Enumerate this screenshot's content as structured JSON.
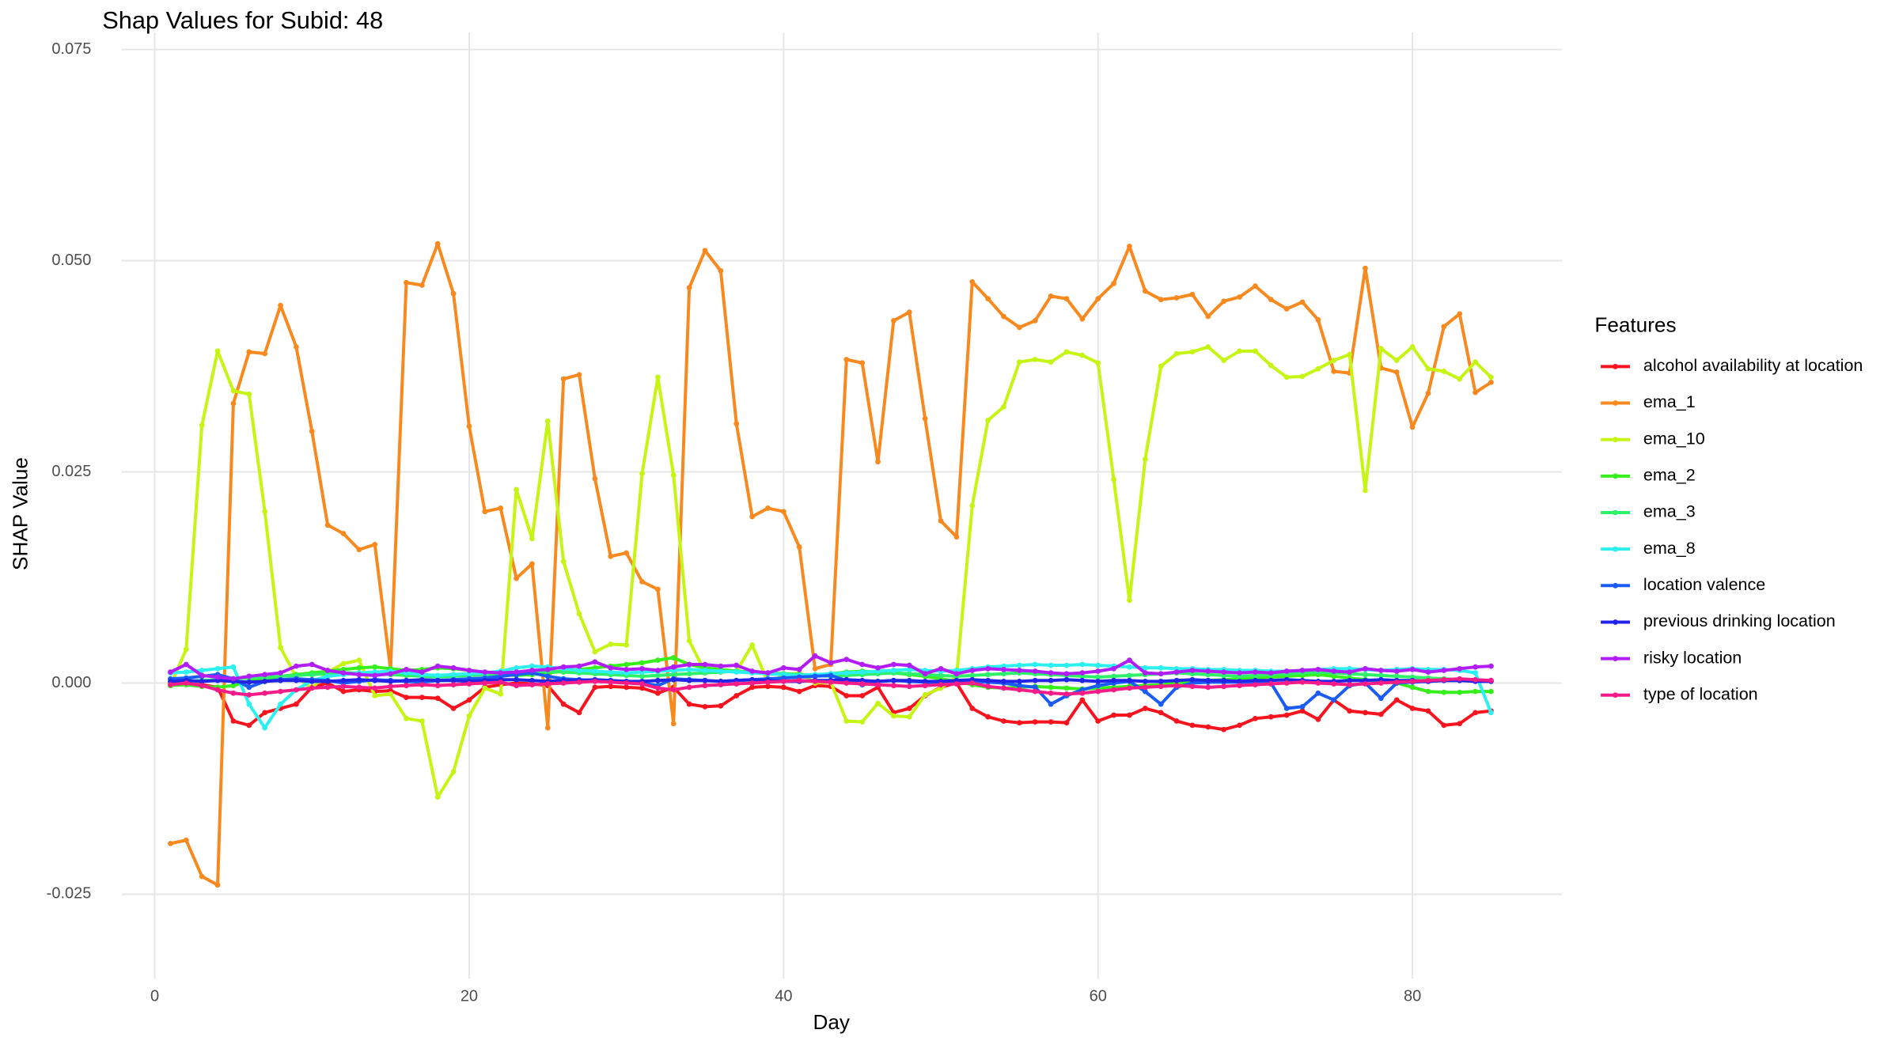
{
  "chart_data": {
    "type": "line",
    "title": "Shap Values for Subid: 48",
    "x_label": "Day",
    "y_label": "SHAP Value",
    "legend_title": "Features",
    "legend": "right",
    "grid": true,
    "xlim": [
      -2.1,
      89.5
    ],
    "ylim": [
      -0.035,
      0.077
    ],
    "xticks": [
      0,
      20,
      40,
      60,
      80
    ],
    "yticks": [
      {
        "value": -0.025,
        "label": "-0.025"
      },
      {
        "value": 0,
        "label": "0.000"
      },
      {
        "value": 0.025,
        "label": "0.025"
      },
      {
        "value": 0.05,
        "label": "0.050"
      },
      {
        "value": 0.075,
        "label": "0.075"
      }
    ],
    "x": [
      1,
      2,
      3,
      4,
      5,
      6,
      7,
      8,
      9,
      10,
      11,
      12,
      13,
      14,
      15,
      16,
      17,
      18,
      19,
      20,
      21,
      22,
      23,
      24,
      25,
      26,
      27,
      28,
      29,
      30,
      31,
      32,
      33,
      34,
      35,
      36,
      37,
      38,
      39,
      40,
      41,
      42,
      43,
      44,
      45,
      46,
      47,
      48,
      49,
      50,
      51,
      52,
      53,
      54,
      55,
      56,
      57,
      58,
      59,
      60,
      61,
      62,
      63,
      64,
      65,
      66,
      67,
      68,
      69,
      70,
      71,
      72,
      73,
      74,
      75,
      76,
      77,
      78,
      79,
      80,
      81,
      82,
      83,
      84,
      85
    ],
    "series": [
      {
        "name": "alcohol availability at location",
        "color": "#f8141e",
        "values": [
          -0.0002,
          -0.0001,
          -0.0002,
          -0.0005,
          -0.0045,
          -0.005,
          -0.0035,
          -0.003,
          -0.0025,
          -0.0005,
          0,
          -0.001,
          -0.0008,
          -0.001,
          -0.0009,
          -0.0017,
          -0.0017,
          -0.0018,
          -0.003,
          -0.002,
          -0.0005,
          -0.0002,
          0,
          -0.0001,
          -0.0003,
          -0.0025,
          -0.0035,
          -0.0005,
          -0.0004,
          -0.0005,
          -0.0006,
          -0.0012,
          -0.0005,
          -0.0025,
          -0.0028,
          -0.0027,
          -0.0015,
          -0.0005,
          -0.0004,
          -0.0005,
          -0.001,
          -0.0003,
          -0.0004,
          -0.0015,
          -0.0015,
          -0.0005,
          -0.0035,
          -0.003,
          -0.0015,
          -0.0005,
          0,
          -0.003,
          -0.004,
          -0.0045,
          -0.0047,
          -0.0046,
          -0.0046,
          -0.0047,
          -0.002,
          -0.0045,
          -0.0038,
          -0.0038,
          -0.003,
          -0.0035,
          -0.0045,
          -0.005,
          -0.0052,
          -0.0055,
          -0.005,
          -0.0042,
          -0.004,
          -0.0038,
          -0.0033,
          -0.0043,
          -0.002,
          -0.0033,
          -0.0035,
          -0.0037,
          -0.002,
          -0.003,
          -0.0033,
          -0.005,
          -0.0048,
          -0.0035,
          -0.0033
        ]
      },
      {
        "name": "ema_1",
        "color": "#f7891f",
        "values": [
          -0.019,
          -0.0186,
          -0.0229,
          -0.0239,
          0.0331,
          0.0392,
          0.039,
          0.0447,
          0.0398,
          0.0298,
          0.0187,
          0.0177,
          0.0158,
          0.0164,
          0.0016,
          0.0474,
          0.0471,
          0.052,
          0.0461,
          0.0304,
          0.0203,
          0.0207,
          0.0124,
          0.0141,
          -0.0053,
          0.036,
          0.0365,
          0.0242,
          0.015,
          0.0154,
          0.012,
          0.0111,
          -0.0048,
          0.0468,
          0.0512,
          0.0488,
          0.0307,
          0.0197,
          0.0207,
          0.0203,
          0.0161,
          0.0017,
          0.0022,
          0.0383,
          0.0379,
          0.0262,
          0.0429,
          0.0439,
          0.0313,
          0.0192,
          0.0173,
          0.0475,
          0.0455,
          0.0434,
          0.0421,
          0.0429,
          0.0458,
          0.0455,
          0.0431,
          0.0455,
          0.0473,
          0.0517,
          0.0464,
          0.0454,
          0.0456,
          0.046,
          0.0434,
          0.0452,
          0.0457,
          0.047,
          0.0454,
          0.0443,
          0.0451,
          0.043,
          0.0369,
          0.0367,
          0.0491,
          0.0373,
          0.0368,
          0.0303,
          0.0343,
          0.0422,
          0.0437,
          0.0344,
          0.0356
        ]
      },
      {
        "name": "ema_10",
        "color": "#c6f514",
        "values": [
          -0.0003,
          0.004,
          0.0305,
          0.0393,
          0.0346,
          0.0342,
          0.0203,
          0.0042,
          0.0007,
          -0.0006,
          0.0013,
          0.0023,
          0.0027,
          -0.0015,
          -0.0013,
          -0.0042,
          -0.0045,
          -0.0135,
          -0.0105,
          -0.0039,
          -0.0006,
          -0.0013,
          0.0229,
          0.0171,
          0.031,
          0.0144,
          0.0082,
          0.0037,
          0.0046,
          0.0045,
          0.0248,
          0.0362,
          0.0246,
          0.005,
          0.0013,
          0.0016,
          0.0014,
          0.0045,
          0.0001,
          0.0009,
          0.0012,
          0,
          0.0001,
          -0.0045,
          -0.0046,
          -0.0024,
          -0.0039,
          -0.004,
          -0.0014,
          -0.0006,
          0.0007,
          0.021,
          0.0311,
          0.0327,
          0.038,
          0.0383,
          0.038,
          0.0392,
          0.0388,
          0.0379,
          0.0241,
          0.0098,
          0.0265,
          0.0375,
          0.039,
          0.0392,
          0.0398,
          0.0382,
          0.0393,
          0.0393,
          0.0376,
          0.0362,
          0.0363,
          0.0372,
          0.0382,
          0.0389,
          0.0228,
          0.0396,
          0.0382,
          0.0398,
          0.0372,
          0.0369,
          0.036,
          0.038,
          0.0362
        ]
      },
      {
        "name": "ema_2",
        "color": "#37ef1c",
        "values": [
          -0.0003,
          -0.0002,
          -0.0004,
          -0.0005,
          -0.0003,
          0.0002,
          0.0005,
          0.0008,
          0.001,
          0.0012,
          0.0014,
          0.0016,
          0.0018,
          0.0019,
          0.0017,
          0.0015,
          0.0016,
          0.0018,
          0.0017,
          0.0015,
          0.0012,
          0.001,
          0.0009,
          0.001,
          0.0012,
          0.0014,
          0.0016,
          0.0018,
          0.002,
          0.0022,
          0.0024,
          0.0027,
          0.003,
          0.0022,
          0.0018,
          0.0016,
          0.0014,
          0.0013,
          0.0012,
          0.0011,
          0.001,
          0.0009,
          0.0011,
          0.0013,
          0.0014,
          0.0013,
          0.0012,
          0.001,
          0.0008,
          0.0005,
          0.0002,
          -0.0002,
          -0.0005,
          -0.0006,
          -0.0005,
          -0.0004,
          -0.0005,
          -0.0006,
          -0.0007,
          -0.0006,
          -0.0005,
          -0.0004,
          -0.0003,
          -0.0002,
          0,
          0.0002,
          0.0003,
          0.0004,
          0.0005,
          0.0006,
          0.0007,
          0.0008,
          0.0009,
          0.001,
          0.0008,
          0.0006,
          0.0004,
          0.0002,
          0,
          -0.0005,
          -0.001,
          -0.0011,
          -0.0011,
          -0.001,
          -0.001
        ]
      },
      {
        "name": "ema_3",
        "color": "#2ef06a",
        "values": [
          0,
          0.0002,
          0.0003,
          0.0004,
          0.0005,
          0.0006,
          0.0007,
          0.0008,
          0.0009,
          0.001,
          0.0011,
          0.0012,
          0.0012,
          0.0011,
          0.001,
          0.0009,
          0.0008,
          0.0007,
          0.0008,
          0.0009,
          0.001,
          0.0011,
          0.0012,
          0.0013,
          0.0014,
          0.0013,
          0.0012,
          0.0011,
          0.001,
          0.0009,
          0.0008,
          0.0009,
          0.001,
          0.0011,
          0.0012,
          0.0013,
          0.0014,
          0.0013,
          0.0012,
          0.0011,
          0.001,
          0.0009,
          0.0008,
          0.0009,
          0.001,
          0.0011,
          0.0012,
          0.0011,
          0.001,
          0.0009,
          0.0008,
          0.0009,
          0.001,
          0.0011,
          0.0012,
          0.0011,
          0.001,
          0.0009,
          0.0008,
          0.0007,
          0.0008,
          0.0009,
          0.001,
          0.0011,
          0.0012,
          0.0011,
          0.001,
          0.0009,
          0.0008,
          0.0009,
          0.001,
          0.0011,
          0.0012,
          0.0013,
          0.0012,
          0.0011,
          0.001,
          0.0009,
          0.0008,
          0.0007,
          0.0006,
          0.0005,
          0.0004,
          0.0003,
          0.0002
        ]
      },
      {
        "name": "ema_8",
        "color": "#2cf0f0",
        "values": [
          0.0012,
          0.0013,
          0.0015,
          0.0017,
          0.0019,
          -0.0025,
          -0.0053,
          -0.0025,
          -0.0008,
          0.0003,
          0.0008,
          0.001,
          0.0012,
          0.0013,
          0.0014,
          0.0012,
          0.001,
          0.0009,
          0.001,
          0.0011,
          0.0012,
          0.0014,
          0.0018,
          0.002,
          0.0019,
          0.0017,
          0.0015,
          0.0014,
          0.0013,
          0.0012,
          0.0013,
          0.0014,
          0.0015,
          0.0016,
          0.0015,
          0.0014,
          0.0013,
          0.0012,
          0.0011,
          0.001,
          0.0009,
          0.001,
          0.0011,
          0.0012,
          0.0013,
          0.0014,
          0.0015,
          0.0016,
          0.0015,
          0.0014,
          0.0015,
          0.0017,
          0.0019,
          0.002,
          0.0021,
          0.0022,
          0.0021,
          0.0021,
          0.0022,
          0.0021,
          0.002,
          0.0019,
          0.0018,
          0.0018,
          0.0017,
          0.0017,
          0.0016,
          0.0016,
          0.0015,
          0.0015,
          0.0014,
          0.0014,
          0.0015,
          0.0016,
          0.0017,
          0.0017,
          0.0016,
          0.0015,
          0.0016,
          0.0017,
          0.0016,
          0.0016,
          0.0015,
          0.0012,
          -0.0035
        ]
      },
      {
        "name": "location valence",
        "color": "#1a5cf5",
        "values": [
          0.0005,
          0.0006,
          0.0008,
          0.001,
          0.0005,
          -0.0005,
          0.0002,
          0.0004,
          0.0005,
          0.0004,
          0.0003,
          0,
          0.0002,
          0.0004,
          0.0003,
          0.0002,
          0.0001,
          0.0003,
          0.0004,
          0.0005,
          0.0006,
          0.0008,
          0.001,
          0.0012,
          0.0008,
          0.0005,
          0.0004,
          0.0003,
          0.0002,
          0.0001,
          0,
          -0.0003,
          0.0005,
          0.0004,
          0.0003,
          0.0002,
          0.0003,
          0.0004,
          0.0005,
          0.0006,
          0.0007,
          0.0008,
          0.0009,
          0.0003,
          -0.0002,
          0.0002,
          0.0003,
          0.0002,
          0.0001,
          0,
          0.0001,
          0.0002,
          0.0001,
          0,
          -0.0003,
          -0.0005,
          -0.0025,
          -0.0015,
          -0.0008,
          -0.0003,
          0,
          0.0002,
          -0.001,
          -0.0025,
          -0.0005,
          0,
          0.0001,
          0.0001,
          0.0001,
          0.0001,
          0,
          -0.003,
          -0.0028,
          -0.0012,
          -0.002,
          -0.0003,
          0,
          -0.0018,
          0,
          0.0001,
          0.0002,
          0.0003,
          0.0003,
          0.0003,
          0.0003
        ]
      },
      {
        "name": "previous drinking location",
        "color": "#2424e8",
        "values": [
          0.0002,
          0.0003,
          0.0002,
          0.0003,
          0.0002,
          0.0001,
          0.0002,
          0.0003,
          0.0003,
          0.0002,
          0.0002,
          0.0003,
          0.0004,
          0.0003,
          0.0002,
          0.0003,
          0.0004,
          0.0003,
          0.0003,
          0.0002,
          0.0003,
          0.0004,
          0.0004,
          0.0003,
          0.0002,
          0.0003,
          0.0003,
          0.0004,
          0.0003,
          0.0002,
          0.0002,
          0.0003,
          0.0004,
          0.0003,
          0.0003,
          0.0002,
          0.0003,
          0.0004,
          0.0003,
          0.0002,
          0.0002,
          0.0003,
          0.0003,
          0.0004,
          0.0003,
          0.0002,
          0.0003,
          0.0003,
          0.0002,
          0.0002,
          0.0003,
          0.0004,
          0.0003,
          0.0002,
          0.0002,
          0.0003,
          0.0003,
          0.0004,
          0.0003,
          0.0002,
          0.0003,
          0.0003,
          0.0002,
          0.0002,
          0.0003,
          0.0004,
          0.0003,
          0.0003,
          0.0002,
          0.0003,
          0.0003,
          0.0004,
          0.0003,
          0.0002,
          0.0002,
          0.0003,
          0.0003,
          0.0004,
          0.0003,
          0.0003,
          0.0002,
          0.0003,
          0.0003,
          0.0002,
          0.0002
        ]
      },
      {
        "name": "risky location",
        "color": "#b21cf5",
        "values": [
          0.0013,
          0.0022,
          0.0009,
          0.0007,
          0.0005,
          0.0008,
          0.001,
          0.0012,
          0.002,
          0.0022,
          0.0015,
          0.0012,
          0.001,
          0.0009,
          0.0011,
          0.0016,
          0.0013,
          0.002,
          0.0018,
          0.0015,
          0.0013,
          0.0012,
          0.0013,
          0.0015,
          0.0016,
          0.0019,
          0.002,
          0.0025,
          0.0018,
          0.0016,
          0.0017,
          0.0015,
          0.0019,
          0.0022,
          0.0022,
          0.002,
          0.0021,
          0.0014,
          0.0012,
          0.0018,
          0.0016,
          0.0032,
          0.0024,
          0.0028,
          0.0022,
          0.0018,
          0.0022,
          0.0021,
          0.0011,
          0.0017,
          0.0011,
          0.0015,
          0.0017,
          0.0016,
          0.0015,
          0.0014,
          0.0012,
          0.0011,
          0.0012,
          0.0014,
          0.0017,
          0.0027,
          0.0012,
          0.0011,
          0.0013,
          0.0015,
          0.0014,
          0.0013,
          0.0012,
          0.0013,
          0.0012,
          0.0014,
          0.0015,
          0.0016,
          0.0014,
          0.0013,
          0.0017,
          0.0015,
          0.0014,
          0.0016,
          0.0013,
          0.0015,
          0.0017,
          0.0019,
          0.002
        ]
      },
      {
        "name": "type of location",
        "color": "#f51c8a",
        "values": [
          -0.0002,
          0,
          -0.0003,
          -0.0008,
          -0.0012,
          -0.0014,
          -0.0012,
          -0.001,
          -0.0008,
          -0.0006,
          -0.0005,
          -0.0004,
          -0.0005,
          -0.0006,
          -0.0004,
          -0.0003,
          -0.0002,
          -0.0003,
          -0.0002,
          -0.0001,
          0,
          0.0001,
          -0.0003,
          -0.0002,
          -0.0001,
          0,
          0.0001,
          0.0002,
          0.0001,
          0,
          -0.0001,
          -0.0006,
          -0.0008,
          -0.0005,
          -0.0003,
          -0.0002,
          -0.0001,
          0,
          0.0001,
          0.0002,
          0.0003,
          0.0002,
          0.0001,
          0,
          -0.0001,
          -0.0002,
          -0.0003,
          -0.0004,
          -0.0003,
          -0.0002,
          -0.0001,
          0,
          -0.0004,
          -0.0006,
          -0.0008,
          -0.001,
          -0.0012,
          -0.0013,
          -0.0012,
          -0.001,
          -0.0008,
          -0.0006,
          -0.0005,
          -0.0004,
          -0.0003,
          -0.0004,
          -0.0005,
          -0.0004,
          -0.0003,
          -0.0002,
          -0.0001,
          0,
          0.0001,
          0,
          -0.0001,
          -0.0002,
          -0.0001,
          0,
          0.0001,
          0.0002,
          0.0003,
          0.0004,
          0.0005,
          0.0004,
          0.0003
        ]
      }
    ]
  }
}
